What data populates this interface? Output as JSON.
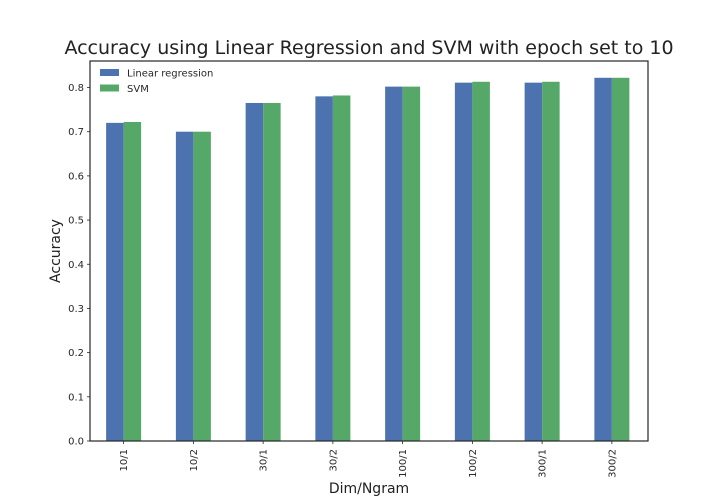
{
  "chart_data": {
    "type": "bar",
    "title": "Accuracy using Linear Regression and SVM with epoch set to 10",
    "xlabel": "Dim/Ngram",
    "ylabel": "Accuracy",
    "categories": [
      "10/1",
      "10/2",
      "30/1",
      "30/2",
      "100/1",
      "100/2",
      "300/1",
      "300/2"
    ],
    "series": [
      {
        "name": "Linear regression",
        "color": "#4c72b0",
        "values": [
          0.72,
          0.7,
          0.765,
          0.78,
          0.802,
          0.811,
          0.811,
          0.822
        ]
      },
      {
        "name": "SVM",
        "color": "#55a868",
        "values": [
          0.722,
          0.7,
          0.765,
          0.782,
          0.802,
          0.813,
          0.813,
          0.822
        ]
      }
    ],
    "ylim": [
      0,
      0.86
    ],
    "yticks": [
      "0.0",
      "0.1",
      "0.2",
      "0.3",
      "0.4",
      "0.5",
      "0.6",
      "0.7",
      "0.8"
    ],
    "grid": false,
    "legend_position": "top-left"
  }
}
